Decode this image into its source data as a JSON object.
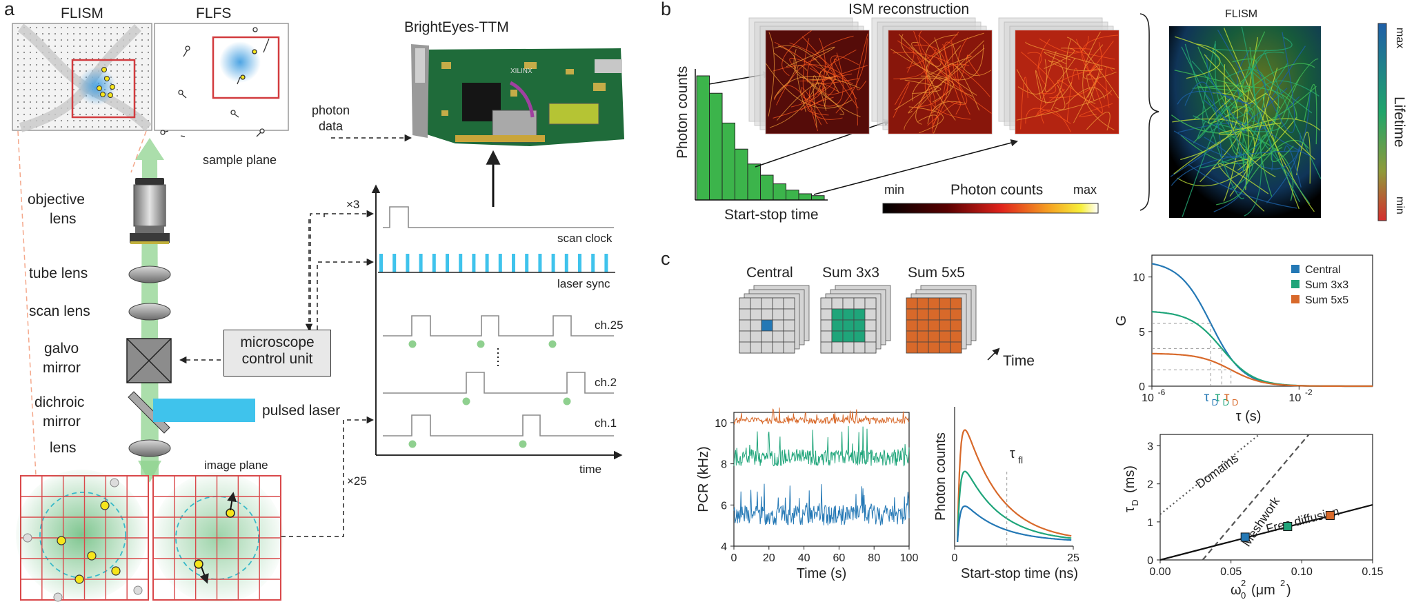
{
  "panels": {
    "a": "a",
    "b": "b",
    "c": "c"
  },
  "a": {
    "flism_title": "FLISM",
    "flfs_title": "FLFS",
    "sample_plane": "sample plane",
    "image_plane": "image plane",
    "objective_lens": [
      "objective",
      "lens"
    ],
    "tube_lens": "tube lens",
    "scan_lens": "scan lens",
    "galvo_mirror": [
      "galvo",
      "mirror"
    ],
    "dichroic_mirror": [
      "dichroic",
      "mirror"
    ],
    "lens": "lens",
    "pulsed_laser": "pulsed laser",
    "control_unit": [
      "microscope",
      "control unit"
    ],
    "photon_data": [
      "photon",
      "data"
    ],
    "device_title": "BrightEyes-TTM",
    "device_chip": "XILINX",
    "x3": "×3",
    "x25": "×25",
    "signals": [
      "scan clock",
      "laser sync",
      "ch.25",
      "ch.2",
      "ch.1"
    ],
    "time": "time",
    "colors": {
      "laser_blue": "#3fc3ec",
      "beam_green": "#7fc97f",
      "grid_red": "#d9484a"
    }
  },
  "b": {
    "title": "ISM reconstruction",
    "ylabel": "Photon counts",
    "xlabel": "Start-stop time",
    "cbar_min": "min",
    "cbar_max": "max",
    "cbar_label": "Photon counts",
    "flism_title": "FLISM",
    "lifetime_label": "Lifetime",
    "lt_max": "max",
    "lt_min": "min",
    "histogram_values": [
      10,
      8.6,
      6.2,
      4.1,
      2.9,
      2.0,
      1.3,
      0.8,
      0.5,
      0.35
    ],
    "colors": {
      "hist": "#3cb44b"
    }
  },
  "c": {
    "central": "Central",
    "sum3": "Sum 3x3",
    "sum5": "Sum 5x5",
    "time_label": "Time",
    "colors": {
      "central": "#2478b5",
      "sum3": "#1fa57a",
      "sum5": "#d8692a"
    }
  },
  "chart_data": [
    {
      "type": "line",
      "xlabel": "Time (s)",
      "ylabel": "PCR (kHz)",
      "xlim": [
        0,
        100
      ],
      "ylim": [
        4,
        10.5
      ],
      "xticks": [
        "0",
        "20",
        "40",
        "60",
        "80",
        "100"
      ],
      "yticks": [
        "4",
        "6",
        "8",
        "10"
      ],
      "series": [
        {
          "name": "Central",
          "mean": 5.5,
          "noise": 1.1,
          "color": "#2478b5"
        },
        {
          "name": "Sum 3x3",
          "mean": 8.3,
          "noise": 0.9,
          "color": "#1fa57a"
        },
        {
          "name": "Sum 5x5",
          "mean": 10.1,
          "noise": 0.35,
          "color": "#d8692a"
        }
      ]
    },
    {
      "type": "line",
      "xlabel": "Start-stop time (ns)",
      "ylabel": "Photon counts",
      "xlim": [
        0,
        25
      ],
      "xticks": [
        "0",
        "25"
      ],
      "annotation": "τ",
      "annotation_sub": "fl",
      "series": [
        {
          "name": "Sum 5x5",
          "peak": 1.0,
          "color": "#d8692a"
        },
        {
          "name": "Sum 3x3",
          "peak": 0.63,
          "color": "#1fa57a"
        },
        {
          "name": "Central",
          "peak": 0.32,
          "color": "#2478b5"
        }
      ]
    },
    {
      "type": "line",
      "xlabel": "τ (s)",
      "ylabel": "G",
      "xscale": "log",
      "xlim": [
        "1e-6",
        "1"
      ],
      "ylim": [
        0,
        12
      ],
      "xticks": [
        "10",
        "10"
      ],
      "xtick_exps": [
        "-6",
        "-2"
      ],
      "yticks": [
        "0",
        "5",
        "10"
      ],
      "legend": [
        "Central",
        "Sum 3x3",
        "Sum 5x5"
      ],
      "legend_position": "top-right",
      "tau_label": "τ",
      "tau_sub": "D",
      "series": [
        {
          "name": "Central",
          "g0": 11.5,
          "tauD_log10": -4.4,
          "color": "#2478b5"
        },
        {
          "name": "Sum 3x3",
          "g0": 6.9,
          "tauD_log10": -4.1,
          "color": "#1fa57a"
        },
        {
          "name": "Sum 5x5",
          "g0": 3.0,
          "tauD_log10": -3.85,
          "color": "#d8692a"
        }
      ]
    },
    {
      "type": "scatter",
      "xlabel": "ω",
      "xlabel_sub": "0",
      "xlabel_sup": "2",
      "xlabel_unit": "(μm",
      "xlabel_unit_sup": "2",
      "xlabel_close": ")",
      "ylabel": "τ",
      "ylabel_sub": "D",
      "ylabel_unit": "(ms)",
      "xlim": [
        0,
        0.15
      ],
      "ylim": [
        0,
        3.3
      ],
      "xticks": [
        "0.00",
        "0.05",
        "0.10",
        "0.15"
      ],
      "yticks": [
        "0",
        "1",
        "2",
        "3"
      ],
      "lines": [
        {
          "name": "Domains",
          "style": "dotted",
          "x": [
            0,
            0.07
          ],
          "y": [
            1.2,
            3.3
          ]
        },
        {
          "name": "Meshwork",
          "style": "dashed",
          "x": [
            0.03,
            0.105
          ],
          "y": [
            0,
            3.3
          ]
        },
        {
          "name": "Free diffusion",
          "style": "solid",
          "x": [
            0,
            0.15
          ],
          "y": [
            0,
            1.45
          ]
        }
      ],
      "points": [
        {
          "x": 0.06,
          "y": 0.6,
          "color": "#2478b5"
        },
        {
          "x": 0.09,
          "y": 0.88,
          "color": "#1fa57a"
        },
        {
          "x": 0.12,
          "y": 1.17,
          "color": "#d8692a"
        }
      ]
    }
  ]
}
